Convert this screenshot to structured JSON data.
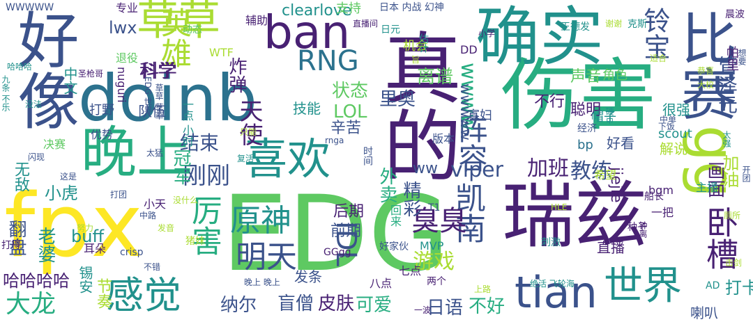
{
  "palette": {
    "purple": "#482173",
    "indigo": "#3b528b",
    "blue": "#2c728e",
    "teal": "#21918c",
    "green": "#27ad81",
    "lime": "#5ec962",
    "yellowgreen": "#aadc32",
    "yellow": "#fde725"
  },
  "words": [
    {
      "text": "EDG",
      "color": "lime"
    },
    {
      "text": "fpx",
      "color": "yellow"
    },
    {
      "text": "doinb",
      "color": "blue"
    },
    {
      "text": "伤害",
      "color": "green"
    },
    {
      "text": "真的",
      "color": "purple"
    },
    {
      "text": "瑞兹",
      "color": "purple"
    },
    {
      "text": "确实",
      "color": "teal"
    },
    {
      "text": "好像",
      "color": "indigo"
    },
    {
      "text": "比赛",
      "color": "indigo"
    },
    {
      "text": "晚上",
      "color": "green"
    },
    {
      "text": "喜欢",
      "color": "teal"
    },
    {
      "text": "ban",
      "color": "purple"
    },
    {
      "text": "草草",
      "color": "yellowgreen"
    },
    {
      "text": "gg",
      "color": "yellowgreen"
    },
    {
      "text": "tian",
      "color": "indigo"
    },
    {
      "text": "世界",
      "color": "teal"
    },
    {
      "text": "感觉",
      "color": "teal"
    },
    {
      "text": "卧槽",
      "color": "purple"
    },
    {
      "text": "原神",
      "color": "teal"
    },
    {
      "text": "明天",
      "color": "indigo"
    },
    {
      "text": "凯南",
      "color": "indigo"
    },
    {
      "text": "阵容",
      "color": "indigo"
    },
    {
      "text": "厉害",
      "color": "green"
    },
    {
      "text": "英雄",
      "color": "yellowgreen"
    },
    {
      "text": "RNG",
      "color": "blue"
    },
    {
      "text": "铃宝",
      "color": "indigo"
    },
    {
      "text": "臭臭",
      "color": "purple"
    },
    {
      "text": "刚刚",
      "color": "indigo"
    },
    {
      "text": "天使",
      "color": "purple"
    },
    {
      "text": "viper",
      "color": "indigo"
    },
    {
      "text": "加班",
      "color": "purple"
    },
    {
      "text": "教练",
      "color": "indigo"
    },
    {
      "text": "IDL",
      "color": "indigo"
    },
    {
      "text": "wwww",
      "color": "green"
    },
    {
      "text": "大龙",
      "color": "green"
    },
    {
      "text": "皮肤",
      "color": "purple"
    },
    {
      "text": "可爱",
      "color": "green"
    },
    {
      "text": "游戏",
      "color": "yellowgreen"
    },
    {
      "text": "盲僧",
      "color": "indigo"
    },
    {
      "text": "纳尔",
      "color": "indigo"
    },
    {
      "text": "不好",
      "color": "green"
    },
    {
      "text": "日语",
      "color": "indigo"
    },
    {
      "text": "画面",
      "color": "purple"
    },
    {
      "text": "管泽元",
      "color": "indigo"
    },
    {
      "text": "哈哈哈哈",
      "color": "purple"
    },
    {
      "text": "翻盘",
      "color": "indigo"
    },
    {
      "text": "老婆",
      "color": "teal"
    },
    {
      "text": "炸弹",
      "color": "purple"
    },
    {
      "text": "结束",
      "color": "indigo"
    },
    {
      "text": "科学",
      "color": "purple"
    },
    {
      "text": "状态",
      "color": "lime"
    },
    {
      "text": "LOL",
      "color": "lime"
    },
    {
      "text": "里奥",
      "color": "indigo"
    },
    {
      "text": "离谱",
      "color": "lime"
    },
    {
      "text": "小虎",
      "color": "teal"
    },
    {
      "text": "冠军",
      "color": "green"
    },
    {
      "text": "外卖",
      "color": "green"
    },
    {
      "text": "ww",
      "color": "indigo"
    },
    {
      "text": "精彩",
      "color": "indigo"
    },
    {
      "text": "前期",
      "color": "indigo"
    },
    {
      "text": "后期",
      "color": "purple"
    },
    {
      "text": "buff",
      "color": "teal"
    },
    {
      "text": "lwx",
      "color": "indigo"
    },
    {
      "text": "clearlove",
      "color": "teal"
    },
    {
      "text": "聪明",
      "color": "purple"
    },
    {
      "text": "不行",
      "color": "purple"
    },
    {
      "text": "直播",
      "color": "purple"
    },
    {
      "text": "打卡",
      "color": "teal"
    },
    {
      "text": "喇叭",
      "color": "indigo"
    },
    {
      "text": "辛苦",
      "color": "indigo"
    },
    {
      "text": "技能",
      "color": "teal"
    },
    {
      "text": "加油",
      "color": "yellowgreen"
    },
    {
      "text": "wwwww",
      "color": "indigo"
    },
    {
      "text": "jiejie",
      "color": "purple"
    },
    {
      "text": "解说",
      "color": "yellowgreen"
    },
    {
      "text": "很强",
      "color": "teal"
    },
    {
      "text": "声音",
      "color": "lime"
    },
    {
      "text": "角色",
      "color": "lime"
    },
    {
      "text": "发条",
      "color": "indigo"
    },
    {
      "text": "好看",
      "color": "indigo"
    },
    {
      "text": "bp",
      "color": "blue"
    },
    {
      "text": "scout",
      "color": "teal"
    },
    {
      "text": "帽子",
      "color": "teal"
    },
    {
      "text": "寡妇",
      "color": "indigo"
    },
    {
      "text": "队伍",
      "color": "indigo"
    },
    {
      "text": "打野",
      "color": "indigo"
    },
    {
      "text": "优势",
      "color": "indigo"
    },
    {
      "text": "无敌",
      "color": "teal"
    },
    {
      "text": "锡安",
      "color": "teal"
    },
    {
      "text": "节奏",
      "color": "yellowgreen"
    },
    {
      "text": "耳朵",
      "color": "purple"
    },
    {
      "text": "小天",
      "color": "purple"
    },
    {
      "text": "打得",
      "color": "purple"
    },
    {
      "text": "中文",
      "color": "teal"
    },
    {
      "text": "支持",
      "color": "lime"
    },
    {
      "text": "辅助",
      "color": "purple"
    },
    {
      "text": "机会",
      "color": "yellowgreen"
    },
    {
      "text": "MVP",
      "color": "teal"
    },
    {
      "text": "WTF",
      "color": "yellowgreen"
    },
    {
      "text": "科学",
      "color": "purple"
    },
    {
      "text": "nuguri",
      "color": "purple"
    },
    {
      "text": "退役",
      "color": "lime"
    },
    {
      "text": "专业",
      "color": "purple"
    },
    {
      "text": "动态",
      "color": "lime"
    },
    {
      "text": "DD",
      "color": "purple"
    },
    {
      "text": "bgm",
      "color": "purple"
    },
    {
      "text": "希望",
      "color": "yellowgreen"
    },
    {
      "text": "主播",
      "color": "teal"
    },
    {
      "text": "一把",
      "color": "purple"
    },
    {
      "text": "船长",
      "color": "purple"
    },
    {
      "text": "种子",
      "color": "purple"
    },
    {
      "text": "钟离",
      "color": "purple"
    },
    {
      "text": "两个",
      "color": "purple"
    },
    {
      "text": "八点",
      "color": "purple"
    },
    {
      "text": "七点",
      "color": "purple"
    },
    {
      "text": "T1",
      "color": "indigo"
    },
    {
      "text": "GGgg",
      "color": "purple"
    },
    {
      "text": "好家伙",
      "color": "indigo"
    },
    {
      "text": "AD",
      "color": "teal"
    },
    {
      "text": "crisp",
      "color": "indigo"
    },
    {
      "text": "猪妹",
      "color": "yellowgreen"
    },
    {
      "text": "版本",
      "color": "indigo"
    },
    {
      "text": "经济",
      "color": "indigo"
    },
    {
      "text": "rnga",
      "color": "indigo"
    },
    {
      "text": "时间",
      "color": "indigo"
    },
    {
      "text": "回来",
      "color": "green"
    },
    {
      "text": "一波",
      "color": "purple"
    },
    {
      "text": "晚上 晚上",
      "color": "indigo"
    },
    {
      "text": "中路",
      "color": "indigo"
    },
    {
      "text": "不错",
      "color": "indigo"
    },
    {
      "text": "发音",
      "color": "yellowgreen"
    },
    {
      "text": "努力",
      "color": "yellowgreen"
    },
    {
      "text": "上路",
      "color": "yellowgreen"
    },
    {
      "text": "绝活 飞轮海",
      "color": "teal"
    },
    {
      "text": "击剑",
      "color": "yellowgreen"
    },
    {
      "text": "厕所",
      "color": "yellowgreen"
    },
    {
      "text": "HLE",
      "color": "yellowgreen"
    },
    {
      "text": "硬币",
      "color": "teal"
    },
    {
      "text": "太强",
      "color": "teal"
    },
    {
      "text": "开团",
      "color": "indigo"
    },
    {
      "text": "大校",
      "color": "yellowgreen"
    },
    {
      "text": "恭喜",
      "color": "yellowgreen"
    },
    {
      "text": "适合",
      "color": "yellowgreen"
    },
    {
      "text": "克斯",
      "color": "teal"
    },
    {
      "text": "王德发",
      "color": "teal"
    },
    {
      "text": "谢谢",
      "color": "yellowgreen"
    },
    {
      "text": "小学",
      "color": "purple"
    },
    {
      "text": "日本 内战 幻神",
      "color": "indigo"
    },
    {
      "text": "日元",
      "color": "teal"
    },
    {
      "text": "估计",
      "color": "teal"
    },
    {
      "text": "WWWWW",
      "color": "indigo"
    },
    {
      "text": "刺激",
      "color": "teal"
    },
    {
      "text": "EDG 世界",
      "color": "indigo"
    },
    {
      "text": "草草 草草",
      "color": "indigo"
    },
    {
      "text": "一点 小时",
      "color": "teal"
    },
    {
      "text": "只能",
      "color": "yellowgreen"
    },
    {
      "text": "复活",
      "color": "teal"
    },
    {
      "text": "太猛",
      "color": "indigo"
    },
    {
      "text": "没什么",
      "color": "yellowgreen"
    },
    {
      "text": "打团",
      "color": "indigo"
    },
    {
      "text": "这是",
      "color": "indigo"
    },
    {
      "text": "决赛",
      "color": "lime"
    },
    {
      "text": "闪现",
      "color": "indigo"
    },
    {
      "text": "没法",
      "color": "teal"
    },
    {
      "text": "九条 不乐",
      "color": "teal"
    },
    {
      "text": "旨",
      "color": "yellowgreen"
    },
    {
      "text": "直播间",
      "color": "purple"
    },
    {
      "text": "下饭",
      "color": "indigo"
    },
    {
      "text": "中单",
      "color": "indigo"
    },
    {
      "text": "想要",
      "color": "indigo"
    },
    {
      "text": "帕里",
      "color": "purple"
    },
    {
      "text": "圣枪哥",
      "color": "purple"
    },
    {
      "text": "哈哈哈",
      "color": "teal"
    },
    {
      "text": "晨波",
      "color": "purple"
    }
  ]
}
